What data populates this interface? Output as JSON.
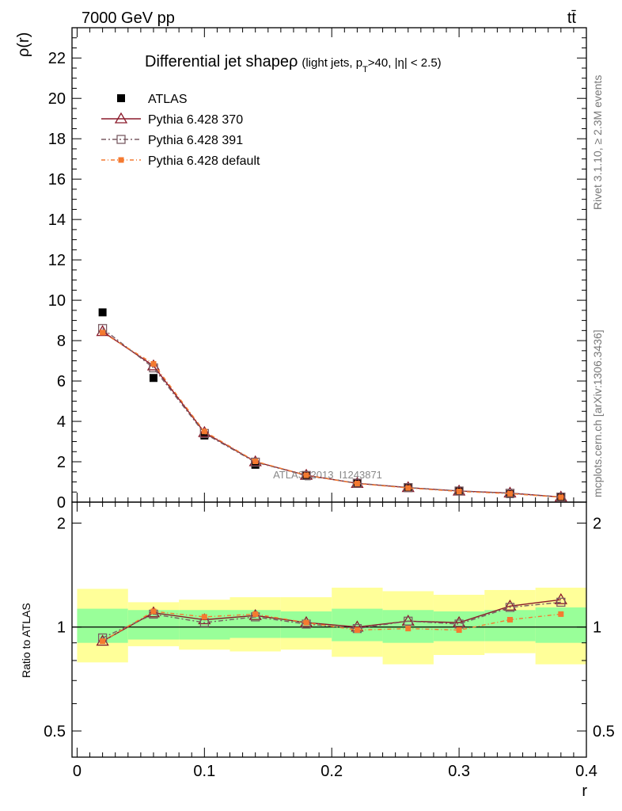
{
  "header": {
    "left": "7000 GeV pp",
    "right": "tt̄"
  },
  "side_labels": {
    "right_top": "Rivet 3.1.10, ≥ 2.3M events",
    "right_bottom": "mcplots.cern.ch [arXiv:1306.3436]"
  },
  "watermark": "ATLAS_2013_I1243871",
  "chart_data": [
    {
      "type": "scatter",
      "title": "Differential jet shape",
      "title_symbol": "ρ",
      "title_extra": "(light jets, p",
      "title_extra_sub": "T",
      "title_extra_tail": ">40, |η| < 2.5)",
      "ylabel": "ρ(r)",
      "xlabel": "",
      "xlim": [
        -0.004,
        0.4
      ],
      "ylim": [
        0,
        23.5
      ],
      "y_ticks": [
        0,
        2,
        4,
        6,
        8,
        10,
        12,
        14,
        16,
        18,
        20,
        22
      ],
      "y_tick_labels": [
        "0",
        "2",
        "4",
        "6",
        "8",
        "10",
        "12",
        "14",
        "16",
        "18",
        "20",
        "22"
      ],
      "legend_position": "top-left",
      "x": [
        0.02,
        0.06,
        0.1,
        0.14,
        0.18,
        0.22,
        0.26,
        0.3,
        0.34,
        0.38
      ],
      "series": [
        {
          "name": "ATLAS",
          "color": "#000000",
          "marker": "filled-square",
          "values": [
            9.4,
            6.15,
            3.3,
            1.85,
            1.3,
            0.95,
            0.7,
            0.55,
            0.4,
            0.25
          ]
        },
        {
          "name": "Pythia 6.428 370",
          "color": "#8b1a2b",
          "marker": "open-triangle",
          "dash": "",
          "values": [
            8.45,
            6.75,
            3.45,
            2.0,
            1.33,
            0.93,
            0.72,
            0.55,
            0.45,
            0.25
          ]
        },
        {
          "name": "Pythia 6.428 391",
          "color": "#7a5c63",
          "marker": "open-square",
          "dash": "6,3,2,3",
          "values": [
            8.6,
            6.65,
            3.4,
            1.98,
            1.32,
            0.94,
            0.72,
            0.55,
            0.44,
            0.25
          ]
        },
        {
          "name": "Pythia 6.428 default",
          "color": "#f47a30",
          "marker": "small-filled-square",
          "dash": "5,3,1,3",
          "values": [
            8.4,
            6.85,
            3.5,
            2.02,
            1.33,
            0.92,
            0.7,
            0.53,
            0.42,
            0.24
          ]
        }
      ]
    },
    {
      "type": "line",
      "ylabel": "Ratio to ATLAS",
      "xlabel": "r",
      "xlim": [
        -0.004,
        0.4
      ],
      "ylim": [
        0.42,
        2.3
      ],
      "scale": "log",
      "x_ticks": [
        0,
        0.1,
        0.2,
        0.3,
        0.4
      ],
      "x_tick_labels": [
        "0",
        "0.1",
        "0.2",
        "0.3",
        "0.4"
      ],
      "y_ticks": [
        0.5,
        1,
        2
      ],
      "y_tick_labels": [
        "0.5",
        "1",
        "2"
      ],
      "bins": [
        {
          "lo": 0.0,
          "hi": 0.04,
          "inner": [
            0.9,
            1.13
          ],
          "outer": [
            0.79,
            1.29
          ]
        },
        {
          "lo": 0.04,
          "hi": 0.08,
          "inner": [
            0.92,
            1.12
          ],
          "outer": [
            0.88,
            1.18
          ]
        },
        {
          "lo": 0.08,
          "hi": 0.12,
          "inner": [
            0.92,
            1.12
          ],
          "outer": [
            0.86,
            1.2
          ]
        },
        {
          "lo": 0.12,
          "hi": 0.16,
          "inner": [
            0.93,
            1.12
          ],
          "outer": [
            0.85,
            1.22
          ]
        },
        {
          "lo": 0.16,
          "hi": 0.2,
          "inner": [
            0.93,
            1.11
          ],
          "outer": [
            0.86,
            1.22
          ]
        },
        {
          "lo": 0.2,
          "hi": 0.24,
          "inner": [
            0.91,
            1.13
          ],
          "outer": [
            0.82,
            1.3
          ]
        },
        {
          "lo": 0.24,
          "hi": 0.28,
          "inner": [
            0.9,
            1.12
          ],
          "outer": [
            0.78,
            1.27
          ]
        },
        {
          "lo": 0.28,
          "hi": 0.32,
          "inner": [
            0.91,
            1.11
          ],
          "outer": [
            0.83,
            1.24
          ]
        },
        {
          "lo": 0.32,
          "hi": 0.36,
          "inner": [
            0.91,
            1.12
          ],
          "outer": [
            0.84,
            1.28
          ]
        },
        {
          "lo": 0.36,
          "hi": 0.4,
          "inner": [
            0.9,
            1.14
          ],
          "outer": [
            0.78,
            1.3
          ]
        }
      ],
      "band_colors": {
        "inner": "#99ff99",
        "outer": "#ffff99"
      },
      "x": [
        0.02,
        0.06,
        0.1,
        0.14,
        0.18,
        0.22,
        0.26,
        0.3,
        0.34,
        0.38
      ],
      "series": [
        {
          "name": "Pythia 6.428 370",
          "color": "#8b1a2b",
          "marker": "open-triangle",
          "dash": "",
          "values": [
            0.91,
            1.1,
            1.05,
            1.08,
            1.03,
            1.0,
            1.04,
            1.03,
            1.15,
            1.2
          ]
        },
        {
          "name": "Pythia 6.428 391",
          "color": "#7a5c63",
          "marker": "open-square",
          "dash": "6,3,2,3",
          "values": [
            0.93,
            1.09,
            1.03,
            1.07,
            1.02,
            0.99,
            1.04,
            1.02,
            1.14,
            1.18
          ]
        },
        {
          "name": "Pythia 6.428 default",
          "color": "#f47a30",
          "marker": "small-filled-square",
          "dash": "5,3,1,3",
          "values": [
            0.91,
            1.11,
            1.07,
            1.09,
            1.03,
            0.98,
            0.99,
            0.98,
            1.05,
            1.09
          ]
        }
      ]
    }
  ]
}
